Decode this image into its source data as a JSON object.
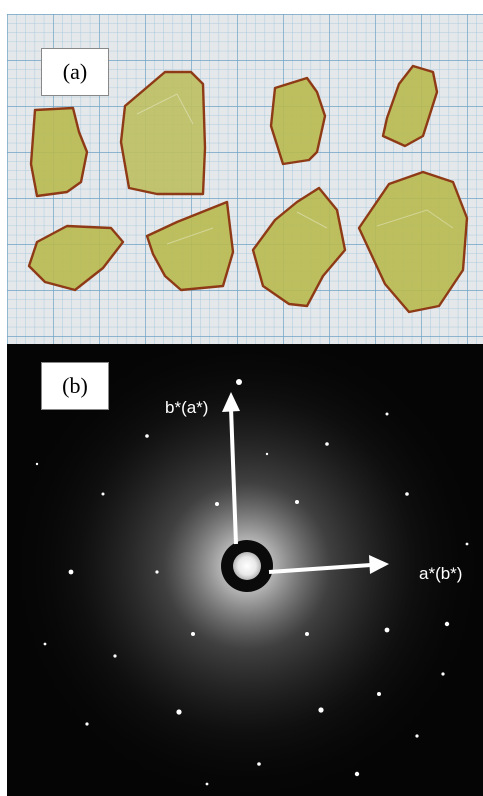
{
  "panels": {
    "a": {
      "label": "(a)",
      "background": "#e4e8ea",
      "grid_color": "#7fb0cf",
      "crystal_color": "#b7b94e",
      "crystal_edge": "#8f3a16",
      "crystal_count": 8
    },
    "b": {
      "label": "(b)",
      "background": "#050505",
      "spot_color": "#ffffff",
      "arrow_color": "#ffffff",
      "axis_vertical_label": "b*(a*)",
      "axis_horizontal_label": "a*(b*)"
    }
  }
}
